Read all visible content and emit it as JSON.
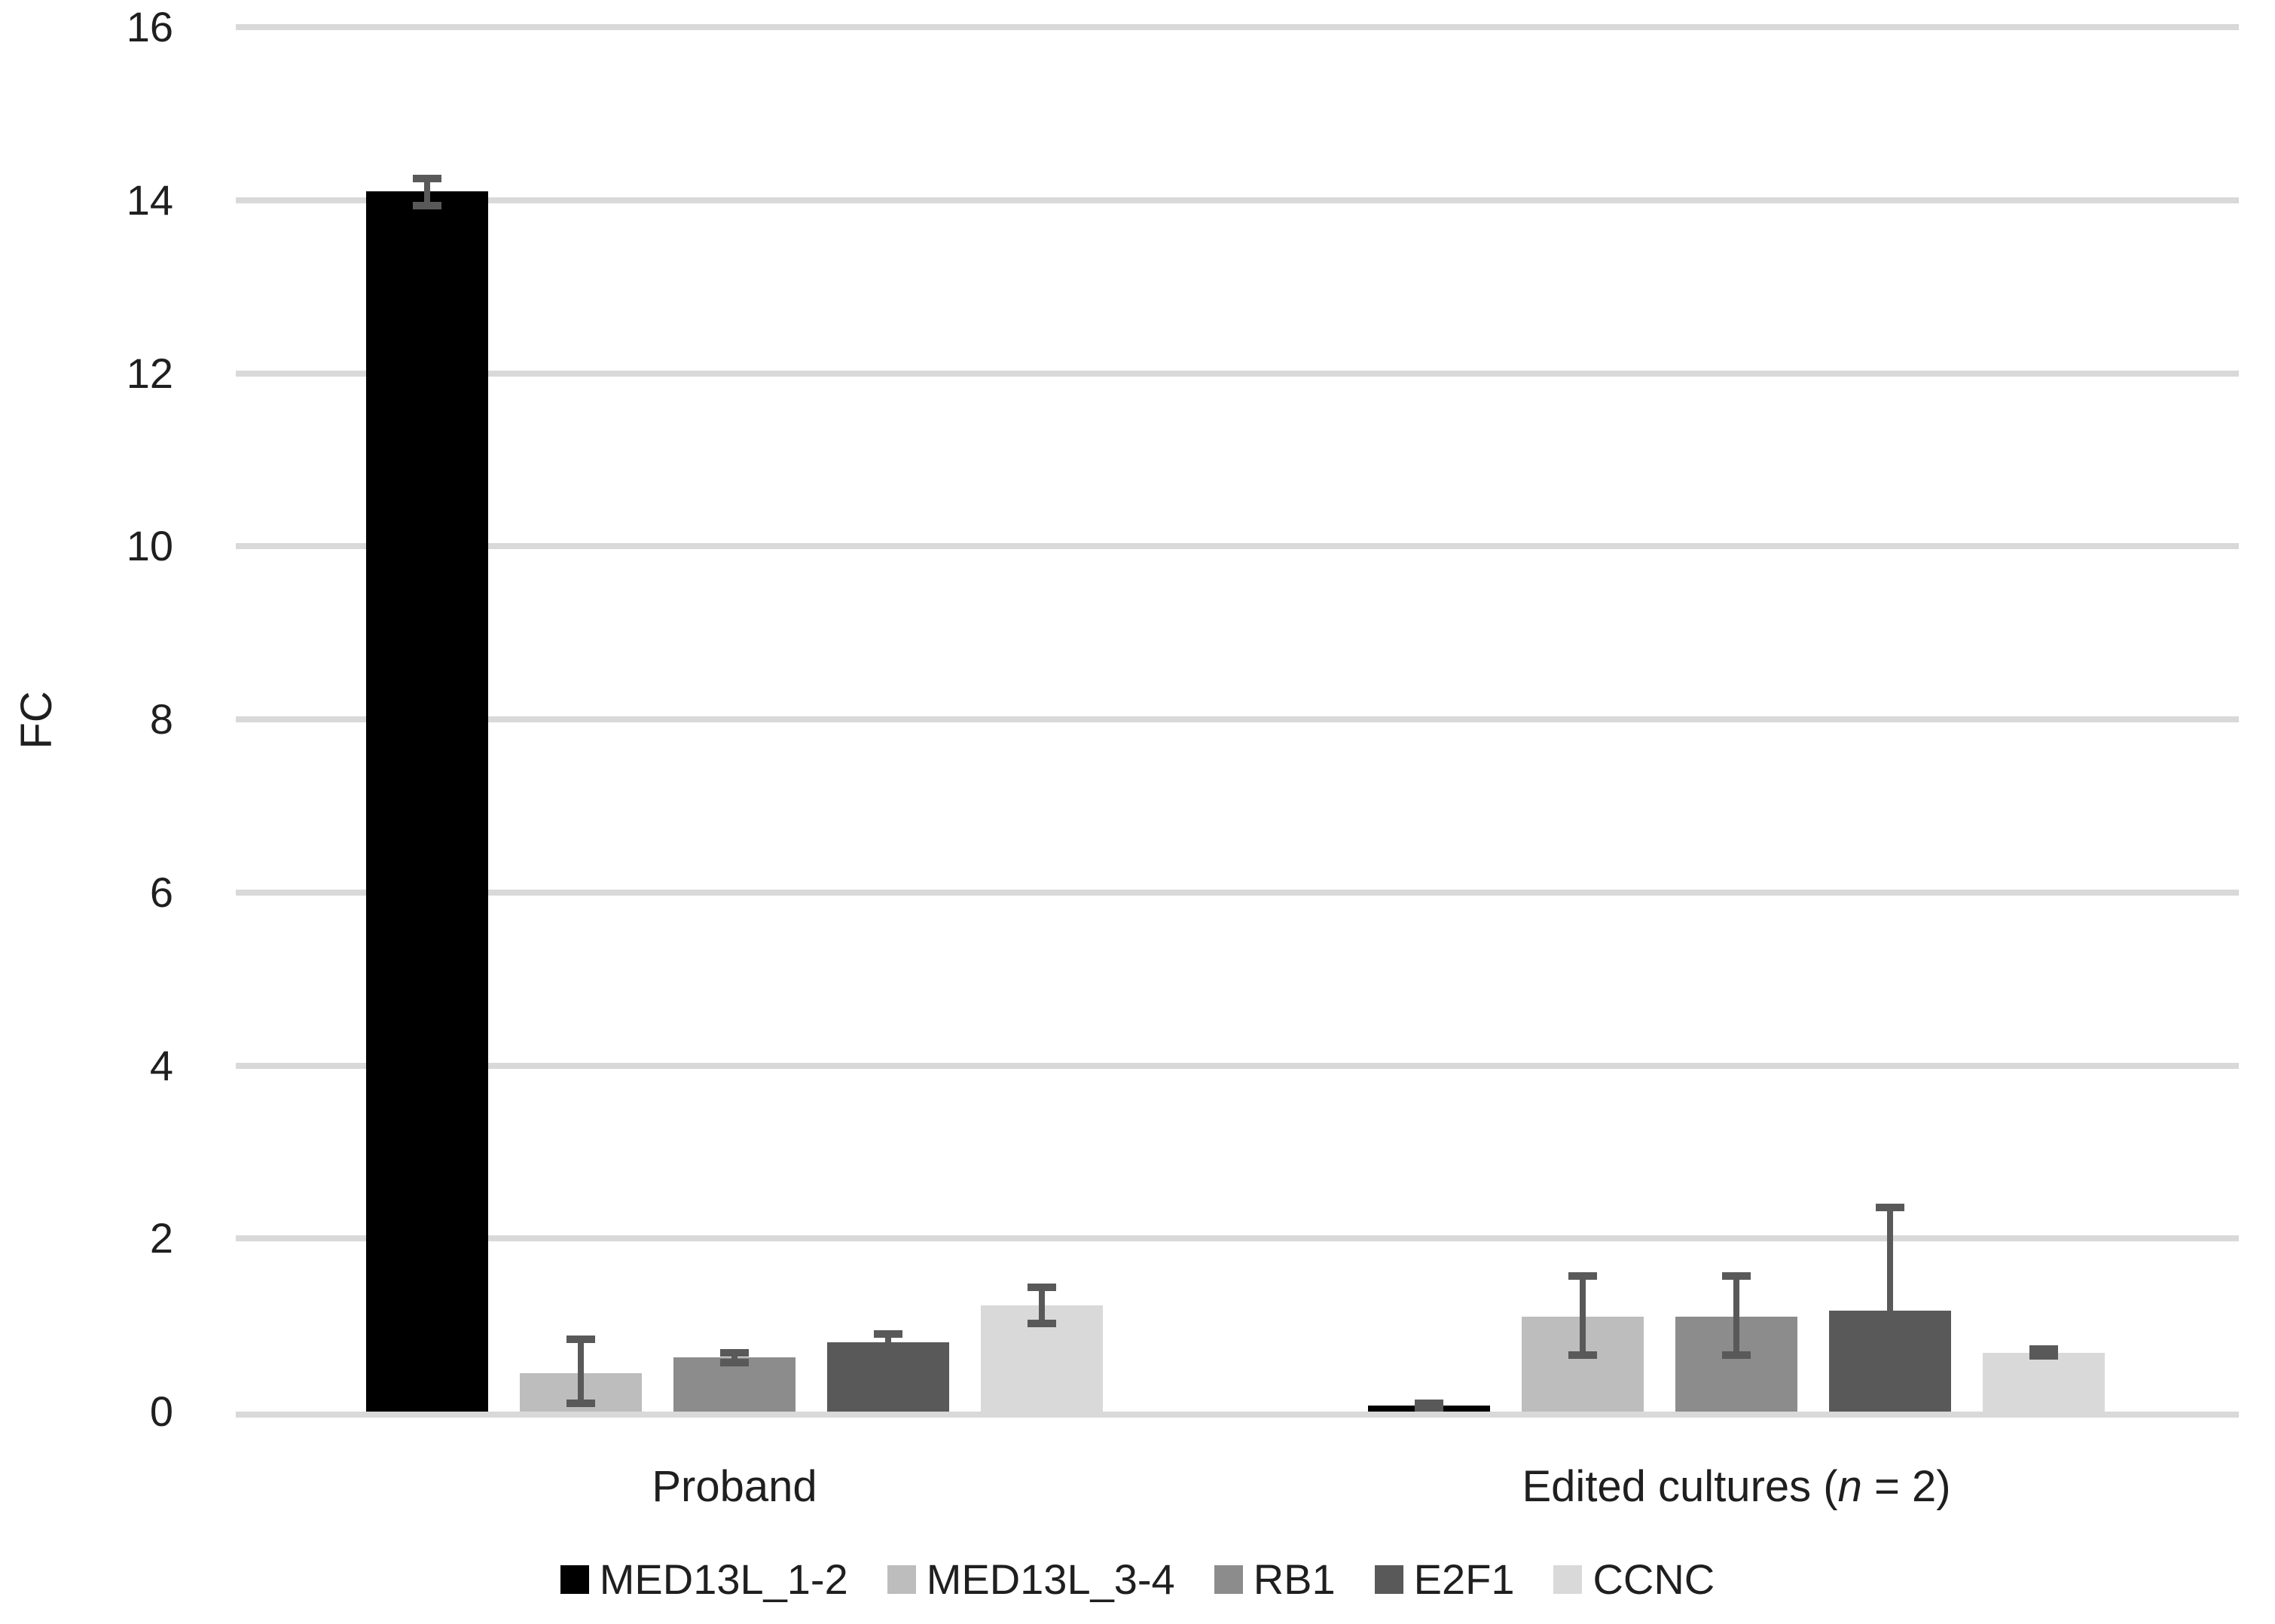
{
  "chart_data": {
    "type": "bar",
    "title": "",
    "ylabel": "FC",
    "xlabel": "",
    "ylim": [
      0,
      16
    ],
    "yticks": [
      0,
      2,
      4,
      6,
      8,
      10,
      12,
      14,
      16
    ],
    "grid": "horizontal gridlines at every y tick",
    "legend_position": "bottom-center",
    "background_color": "#FFFFFF",
    "gridline_color": "#D9D9D9",
    "error_bar_color": "#595959",
    "text_color": "#1f1f1f",
    "categories": [
      {
        "parts": [
          {
            "t": "Proband",
            "i": false
          }
        ]
      },
      {
        "parts": [
          {
            "t": "Edited cultures (",
            "i": false
          },
          {
            "t": "n",
            "i": true
          },
          {
            "t": " = 2)",
            "i": false
          }
        ]
      }
    ],
    "series": [
      {
        "name": "MED13L_1-2",
        "color": "#000000",
        "values": [
          14.1,
          0.07
        ],
        "err_lo": [
          13.94,
          0.04
        ],
        "err_hi": [
          14.25,
          0.1
        ]
      },
      {
        "name": "MED13L_3-4",
        "color": "#BDBDBD",
        "values": [
          0.44,
          1.1
        ],
        "err_lo": [
          0.1,
          0.65
        ],
        "err_hi": [
          0.84,
          1.57
        ]
      },
      {
        "name": "RB1",
        "color": "#8C8C8C",
        "values": [
          0.63,
          1.1
        ],
        "err_lo": [
          0.57,
          0.65
        ],
        "err_hi": [
          0.68,
          1.57
        ]
      },
      {
        "name": "E2F1",
        "color": "#595959",
        "values": [
          0.8,
          1.17
        ],
        "err_lo": [
          0.71,
          1.0
        ],
        "err_hi": [
          0.9,
          2.36
        ]
      },
      {
        "name": "CCNC",
        "color": "#D9D9D9",
        "values": [
          1.23,
          0.68
        ],
        "err_lo": [
          1.02,
          0.64
        ],
        "err_hi": [
          1.44,
          0.72
        ]
      }
    ]
  }
}
